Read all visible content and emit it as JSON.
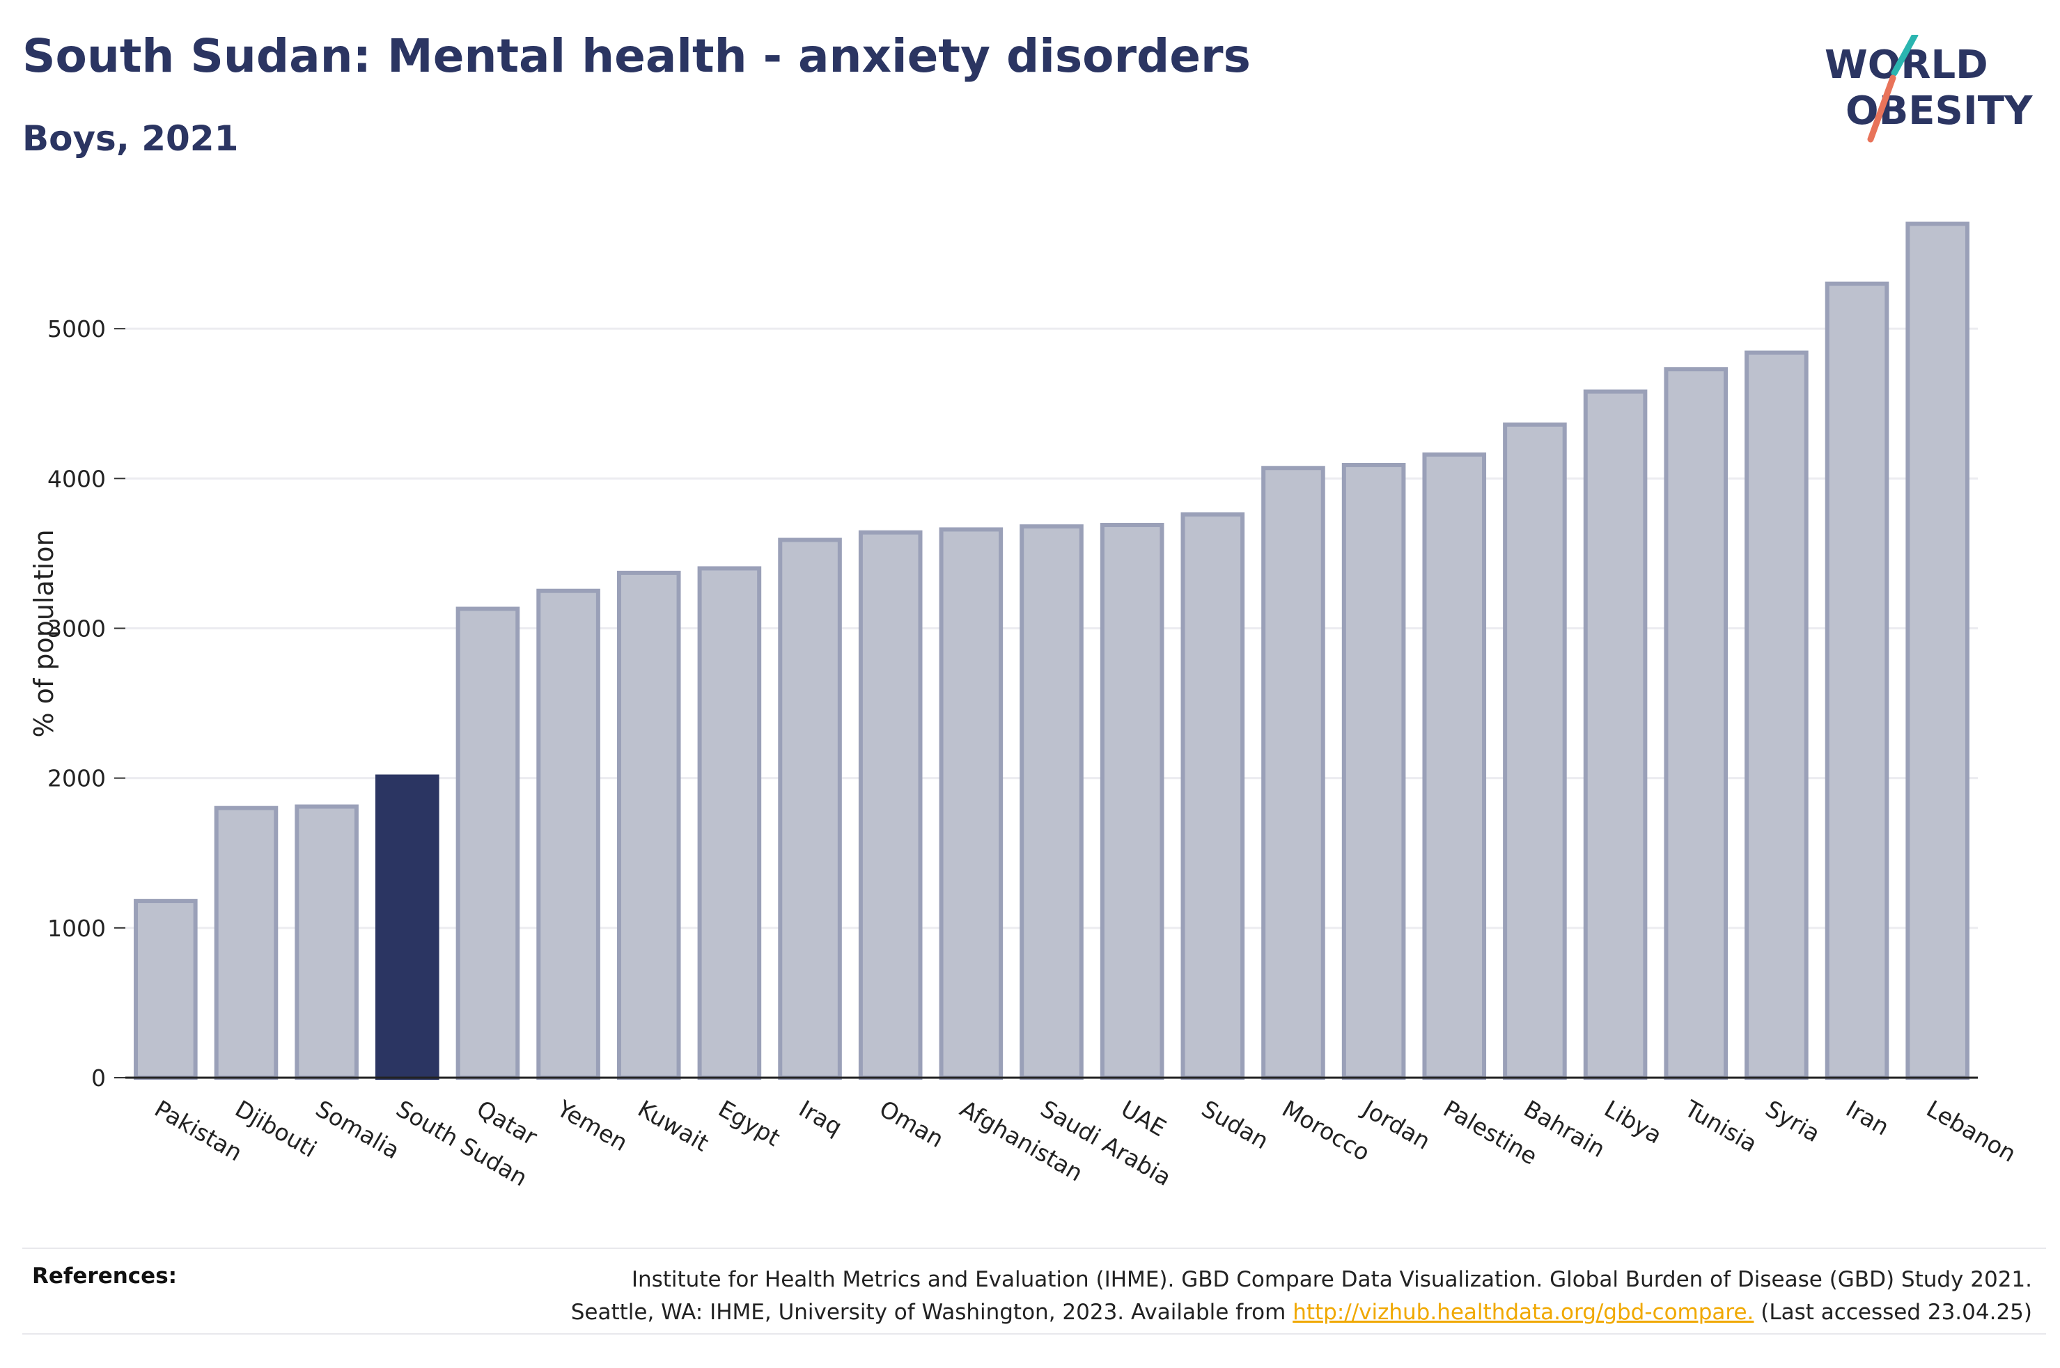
{
  "header": {
    "title": "South Sudan: Mental health - anxiety disorders",
    "subtitle": "Boys, 2021"
  },
  "logo": {
    "line1": "WORLD",
    "line2": "OBESITY"
  },
  "chart_data": {
    "type": "bar",
    "title": "South Sudan: Mental health - anxiety disorders",
    "subtitle": "Boys, 2021",
    "xlabel": "",
    "ylabel": "% of population",
    "ylim": [
      0,
      5800
    ],
    "yticks": [
      0,
      1000,
      2000,
      3000,
      4000,
      5000
    ],
    "grid": true,
    "highlight": "South Sudan",
    "categories": [
      "Pakistan",
      "Djibouti",
      "Somalia",
      "South Sudan",
      "Qatar",
      "Yemen",
      "Kuwait",
      "Egypt",
      "Iraq",
      "Oman",
      "Afghanistan",
      "Saudi Arabia",
      "UAE",
      "Sudan",
      "Morocco",
      "Jordan",
      "Palestine",
      "Bahrain",
      "Libya",
      "Tunisia",
      "Syria",
      "Iran",
      "Lebanon"
    ],
    "values": [
      1180,
      1800,
      1810,
      2010,
      3130,
      3250,
      3370,
      3400,
      3590,
      3640,
      3660,
      3680,
      3690,
      3760,
      4070,
      4090,
      4160,
      4360,
      4580,
      4730,
      4840,
      5300,
      5700
    ],
    "colors": {
      "default": "#bdc1ce",
      "default_border": "#9aa0b8",
      "highlight": "#2b3562"
    }
  },
  "references": {
    "label": "References:",
    "line1": "Institute for Health Metrics and Evaluation (IHME). GBD Compare Data Visualization. Global Burden of Disease (GBD) Study 2021.",
    "line2_prefix": "Seattle, WA: IHME, University of Washington, 2023. Available from ",
    "link": "http://vizhub.healthdata.org/gbd-compare.",
    "line2_suffix": " (Last accessed 23.04.25)"
  }
}
